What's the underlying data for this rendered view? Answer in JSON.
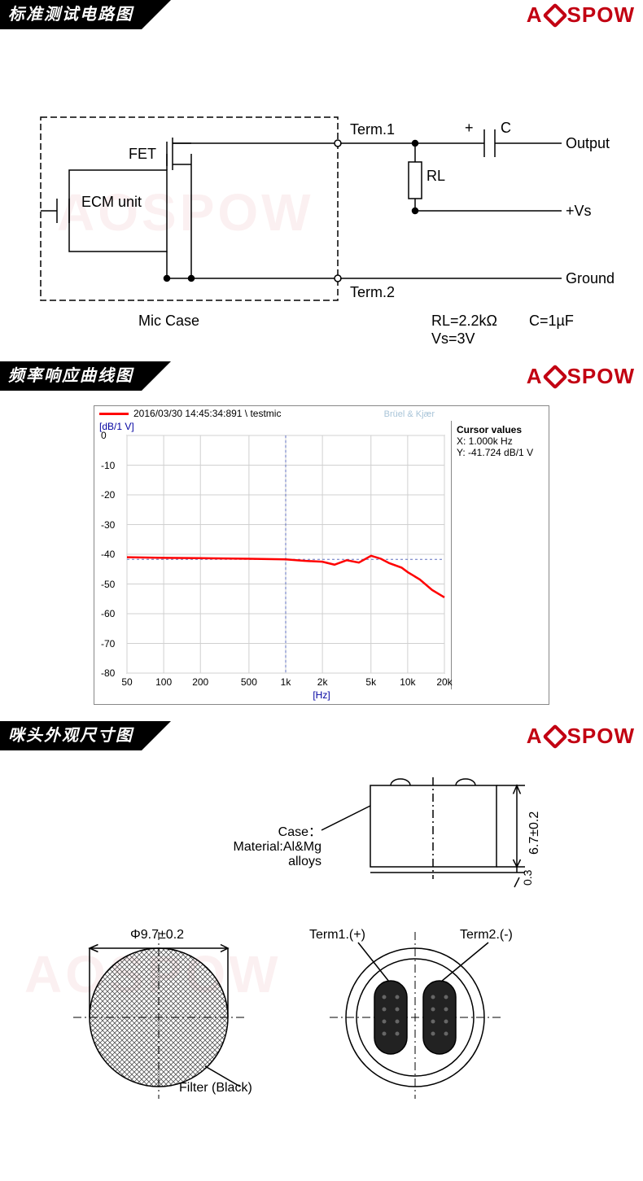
{
  "brand": "AOSPOW",
  "brand_color": "#c20012",
  "sections": {
    "circuit": {
      "title": "标准测试电路图"
    },
    "chart": {
      "title": "频率响应曲线图"
    },
    "dims": {
      "title": "咪头外观尺寸图"
    }
  },
  "circuit": {
    "labels": {
      "fet": "FET",
      "ecm": "ECM unit",
      "mic_case": "Mic Case",
      "term1": "Term.1",
      "term2": "Term.2",
      "cap": "C",
      "cap_plus": "+",
      "rl": "RL",
      "output": "Output",
      "vs": "+Vs",
      "ground": "Ground",
      "rl_value": "RL=2.2kΩ",
      "c_value": "C=1µF",
      "vs_value": "Vs=3V"
    },
    "stroke_color": "#000000",
    "stroke_width": 1.5
  },
  "chart": {
    "timestamp": "2016/03/30 14:45:34:891 \\ testmic",
    "bk_watermark": "Brüel & Kjær",
    "cursor_title": "Cursor values",
    "cursor_x": "X: 1.000k Hz",
    "cursor_y": "Y: -41.724 dB/1 V",
    "y_axis_label": "[dB/1 V]",
    "x_axis_label": "[Hz]",
    "y_ticks": [
      0,
      -10,
      -20,
      -30,
      -40,
      -50,
      -60,
      -70,
      -80
    ],
    "x_ticks": [
      "50",
      "100",
      "200",
      "500",
      "1k",
      "2k",
      "5k",
      "10k",
      "20k"
    ],
    "x_tick_values_log": [
      1.699,
      2.0,
      2.301,
      2.699,
      3.0,
      3.301,
      3.699,
      4.0,
      4.301
    ],
    "x_log_min": 1.699,
    "x_log_max": 4.301,
    "y_min": -80,
    "y_max": 0,
    "cursor_x_log": 3.0,
    "cursor_y_val": -41.724,
    "line_color": "#ff0000",
    "grid_color": "#d0d0d0",
    "axis_color": "#888888",
    "cursor_line_color": "#6070c0",
    "data": [
      [
        1.699,
        -41.0
      ],
      [
        2.0,
        -41.2
      ],
      [
        2.3,
        -41.3
      ],
      [
        2.7,
        -41.5
      ],
      [
        3.0,
        -41.7
      ],
      [
        3.15,
        -42.2
      ],
      [
        3.3,
        -42.5
      ],
      [
        3.4,
        -43.5
      ],
      [
        3.5,
        -42.0
      ],
      [
        3.6,
        -42.8
      ],
      [
        3.7,
        -40.5
      ],
      [
        3.78,
        -41.5
      ],
      [
        3.85,
        -43.0
      ],
      [
        3.95,
        -44.5
      ],
      [
        4.0,
        -46.0
      ],
      [
        4.1,
        -48.5
      ],
      [
        4.2,
        -52.0
      ],
      [
        4.301,
        -54.5
      ]
    ]
  },
  "dims": {
    "case_label": "Case：",
    "material_label": "Material:Al&Mg alloys",
    "height_label": "6.7±0.2",
    "base_label": "0.3",
    "diameter_label": "Φ9.7±0.2",
    "filter_label": "Filter (Black)",
    "term1_label": "Term1.(+)",
    "term2_label": "Term2.(-)",
    "stroke_color": "#000000"
  },
  "watermark_text": "AOSPOW"
}
